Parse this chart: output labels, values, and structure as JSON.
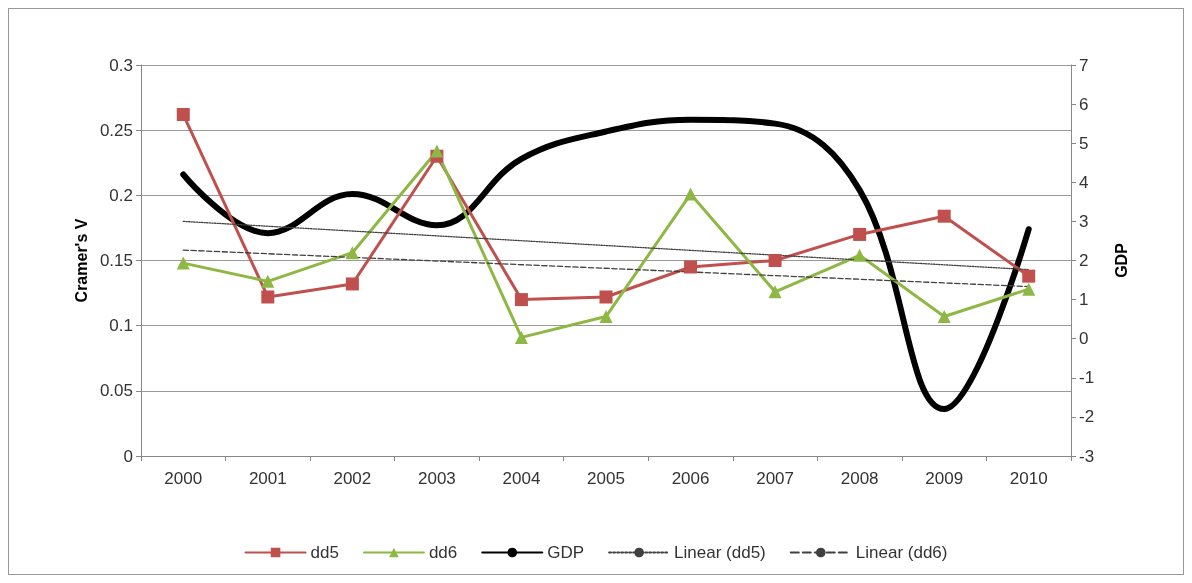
{
  "chart_data": {
    "type": "line",
    "ylabel": "Cramer's V",
    "y2label": "GDP",
    "categories": [
      "2000",
      "2001",
      "2002",
      "2003",
      "2004",
      "2005",
      "2006",
      "2007",
      "2008",
      "2009",
      "2010"
    ],
    "series": [
      {
        "name": "dd5",
        "color": "#c0504d",
        "marker": "square",
        "values": [
          0.262,
          0.122,
          0.132,
          0.23,
          0.12,
          0.122,
          0.145,
          0.15,
          0.17,
          0.184,
          0.138
        ]
      },
      {
        "name": "dd6",
        "color": "#8db843",
        "marker": "triangle",
        "values": [
          0.148,
          0.134,
          0.156,
          0.234,
          0.091,
          0.107,
          0.201,
          0.126,
          0.154,
          0.107,
          0.128
        ]
      },
      {
        "name": "GDP",
        "color": "#000000",
        "marker": "none",
        "axis": "y2",
        "values": [
          4.2,
          2.7,
          3.7,
          2.9,
          4.6,
          5.3,
          5.6,
          5.5,
          3.8,
          -1.8,
          2.8
        ]
      },
      {
        "name": "Linear (dd5)",
        "color": "#404040",
        "marker": "none",
        "line_style": "dotted",
        "values": [
          0.18,
          null,
          null,
          null,
          null,
          null,
          null,
          null,
          null,
          null,
          0.143
        ]
      },
      {
        "name": "Linear (dd6)",
        "color": "#404040",
        "marker": "none",
        "line_style": "dashed",
        "values": [
          0.158,
          null,
          null,
          null,
          null,
          null,
          null,
          null,
          null,
          null,
          0.13
        ]
      }
    ],
    "ylim": [
      0,
      0.3
    ],
    "yticks": [
      0,
      0.05,
      0.1,
      0.15,
      0.2,
      0.25,
      0.3
    ],
    "y2lim": [
      -3,
      7
    ],
    "y2ticks": [
      -3,
      -2,
      -1,
      0,
      1,
      2,
      3,
      4,
      5,
      6,
      7
    ],
    "grid": "y",
    "legend": "bottom"
  }
}
